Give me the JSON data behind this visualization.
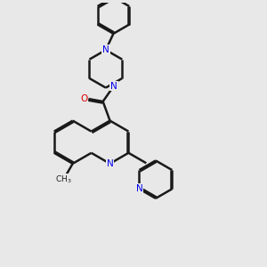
{
  "bg_color": "#e8e8e8",
  "bond_color": "#1a1a1a",
  "N_color": "#0000ee",
  "O_color": "#dd0000",
  "bond_width": 1.8,
  "dbo": 0.055,
  "xlim": [
    0,
    10
  ],
  "ylim": [
    0,
    10
  ]
}
